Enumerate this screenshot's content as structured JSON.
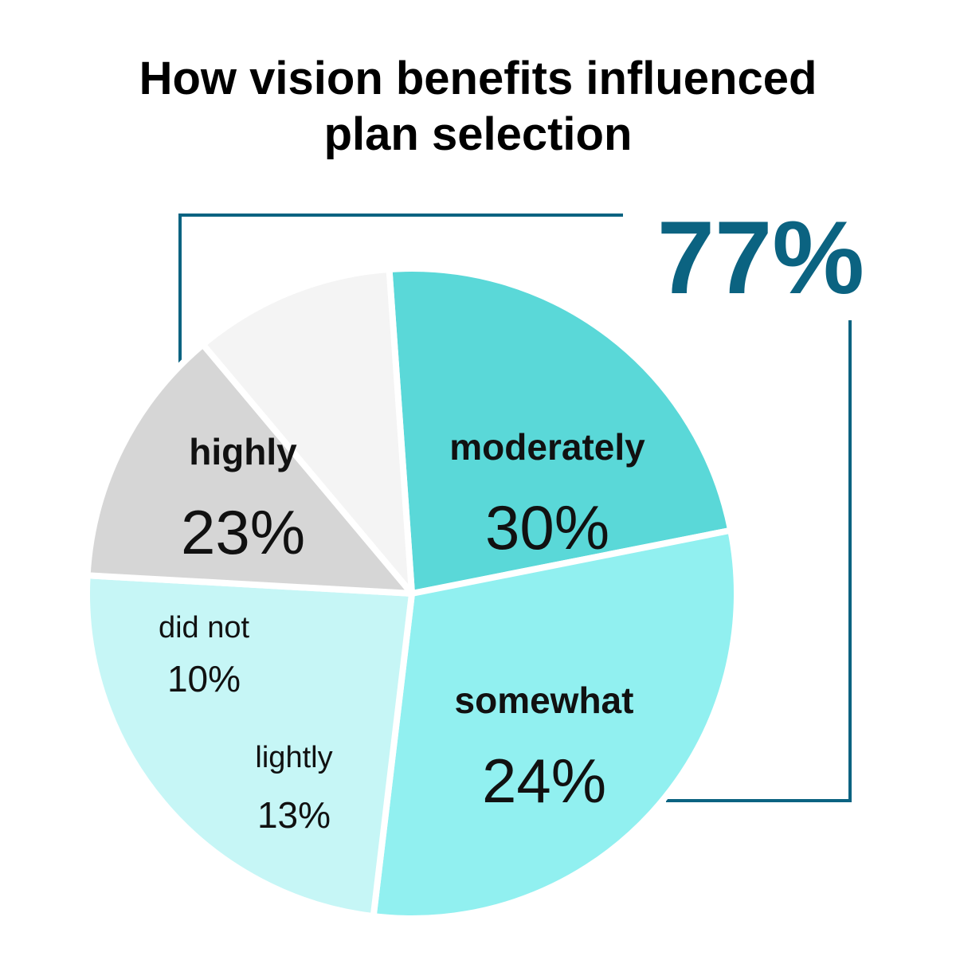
{
  "chart_data": {
    "type": "pie",
    "title_lines": [
      "How vision benefits influenced",
      "plan selection"
    ],
    "slices": [
      {
        "label": "highly",
        "value": 23,
        "display": "23%",
        "color": "#5ad8d8",
        "emphasis": true
      },
      {
        "label": "moderately",
        "value": 30,
        "display": "30%",
        "color": "#91f0f0",
        "emphasis": true
      },
      {
        "label": "somewhat",
        "value": 24,
        "display": "24%",
        "color": "#c6f6f6",
        "emphasis": true
      },
      {
        "label": "lightly",
        "value": 13,
        "display": "13%",
        "color": "#d6d6d6",
        "emphasis": false
      },
      {
        "label": "did not",
        "value": 10,
        "display": "10%",
        "color": "#f4f4f4",
        "emphasis": false
      }
    ],
    "bracket_total": {
      "value": 77,
      "display": "77%",
      "color": "#0b6381"
    }
  }
}
